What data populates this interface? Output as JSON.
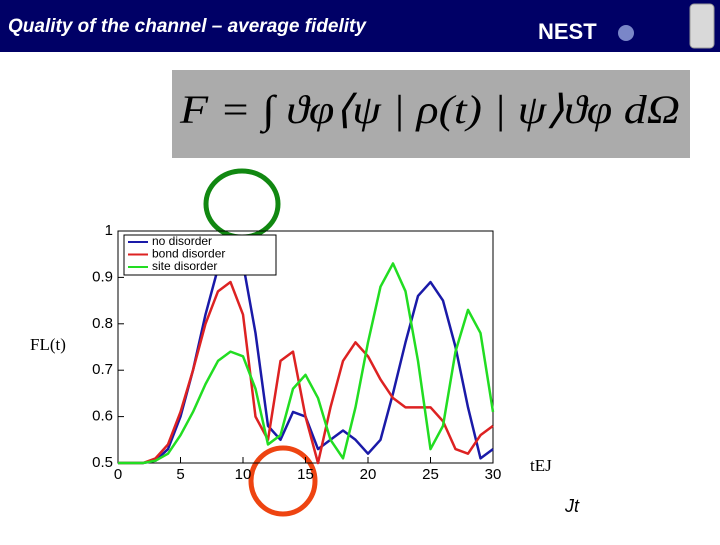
{
  "slide": {
    "title": "Quality of the channel – average fidelity",
    "logo": "NEST",
    "formula": "F = ∫ ϑφ⟨ψ | ρ(t) | ψ⟩ϑφ dΩ"
  },
  "chart_data": {
    "type": "line",
    "x_label": "tEJ",
    "y_label": "FL(t)",
    "annotation": "Jt",
    "x": [
      0,
      2,
      3,
      4,
      5,
      6,
      7,
      8,
      9,
      10,
      11,
      12,
      13,
      14,
      15,
      16,
      17,
      18,
      19,
      20,
      21,
      22,
      23,
      24,
      25,
      26,
      27,
      28,
      29,
      30
    ],
    "series": [
      {
        "name": "no disorder",
        "color": "#1a1aa8",
        "values": [
          0.5,
          0.5,
          0.505,
          0.53,
          0.6,
          0.7,
          0.82,
          0.92,
          0.96,
          0.93,
          0.78,
          0.58,
          0.55,
          0.61,
          0.6,
          0.53,
          0.55,
          0.57,
          0.55,
          0.52,
          0.55,
          0.65,
          0.76,
          0.86,
          0.89,
          0.85,
          0.75,
          0.62,
          0.51,
          0.53
        ]
      },
      {
        "name": "bond disorder",
        "color": "#dd2222",
        "values": [
          0.5,
          0.5,
          0.51,
          0.54,
          0.61,
          0.7,
          0.8,
          0.87,
          0.89,
          0.82,
          0.6,
          0.55,
          0.72,
          0.74,
          0.6,
          0.5,
          0.62,
          0.72,
          0.76,
          0.73,
          0.68,
          0.64,
          0.62,
          0.62,
          0.62,
          0.59,
          0.53,
          0.52,
          0.56,
          0.58
        ]
      },
      {
        "name": "site disorder",
        "color": "#22dd22",
        "values": [
          0.5,
          0.5,
          0.505,
          0.52,
          0.56,
          0.61,
          0.67,
          0.72,
          0.74,
          0.73,
          0.66,
          0.54,
          0.56,
          0.66,
          0.69,
          0.64,
          0.55,
          0.51,
          0.62,
          0.76,
          0.88,
          0.93,
          0.87,
          0.72,
          0.53,
          0.58,
          0.74,
          0.83,
          0.78,
          0.61
        ]
      }
    ],
    "xlim": [
      0,
      30
    ],
    "xticks": [
      0,
      5,
      10,
      15,
      20,
      25,
      30
    ],
    "ylim": [
      0.5,
      1
    ],
    "yticks": [
      0.5,
      0.6,
      0.7,
      0.8,
      0.9,
      1
    ],
    "legend": "top-left"
  }
}
